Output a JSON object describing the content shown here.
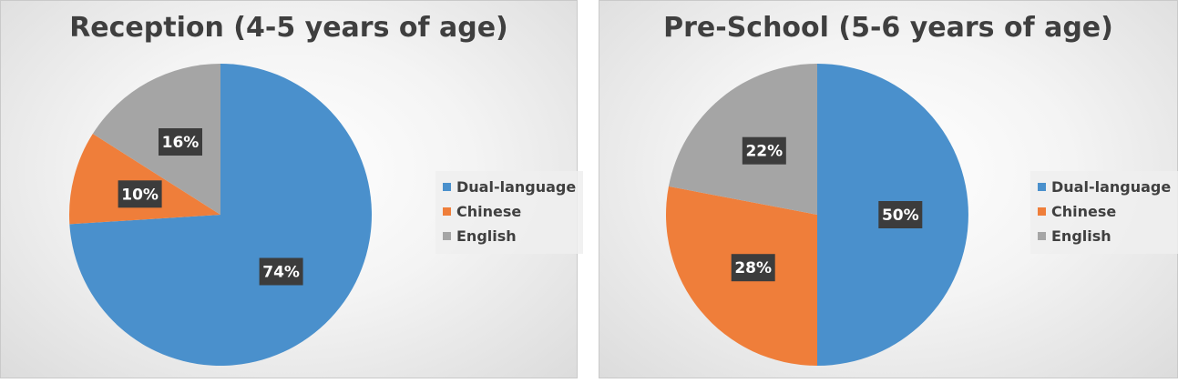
{
  "colors": {
    "dual_language": "#4a90cc",
    "chinese": "#ef7e3a",
    "english": "#a5a5a5",
    "label_bg": "#3c3c3c",
    "label_text": "#ffffff"
  },
  "chart_data": [
    {
      "type": "pie",
      "title": "Reception (4-5 years of age)",
      "categories": [
        "Dual-language",
        "Chinese",
        "English"
      ],
      "values": [
        74,
        10,
        16
      ],
      "labels": [
        "74%",
        "10%",
        "16%"
      ],
      "legend_position": "right"
    },
    {
      "type": "pie",
      "title": "Pre-School (5-6 years of age)",
      "categories": [
        "Dual-language",
        "Chinese",
        "English"
      ],
      "values": [
        50,
        28,
        22
      ],
      "labels": [
        "50%",
        "28%",
        "22%"
      ],
      "legend_position": "right"
    }
  ]
}
